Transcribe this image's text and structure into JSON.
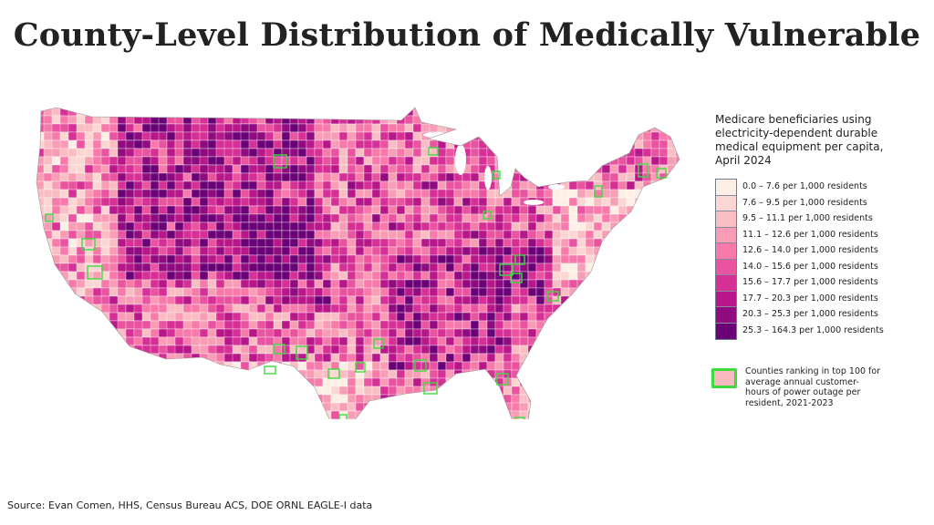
{
  "title": "County-Level Distribution of Medically Vulnerable",
  "legend": {
    "title": "Medicare beneficiaries using electricity-dependent durable medical equipment per capita, April 2024",
    "classes": [
      {
        "label": "0.0 – 7.6 per 1,000 residents",
        "color": "#fdeee6"
      },
      {
        "label": "7.6 – 9.5 per 1,000 residents",
        "color": "#fcd6d3"
      },
      {
        "label": "9.5 – 11.1 per 1,000 residents",
        "color": "#fbbdc4"
      },
      {
        "label": "11.1 – 12.6 per 1,000 residents",
        "color": "#f99db6"
      },
      {
        "label": "12.6 – 14.0 per 1,000 residents",
        "color": "#f77aab"
      },
      {
        "label": "14.0 – 15.6 per 1,000 residents",
        "color": "#e9539f"
      },
      {
        "label": "15.6 – 17.7 per 1,000 residents",
        "color": "#d62f95"
      },
      {
        "label": "17.7 – 20.3 per 1,000 residents",
        "color": "#b8178a"
      },
      {
        "label": "20.3 – 25.3 per 1,000 residents",
        "color": "#8f0b7f"
      },
      {
        "label": "25.3 – 164.3 per 1,000 residents",
        "color": "#6a0177"
      }
    ],
    "outage": {
      "label": "Counties ranking in top 100 for average annual customer-hours of power outage per resident, 2021-2023",
      "outline_color": "#3ddc3d"
    }
  },
  "source": "Source: Evan Comen, HHS, Census Bureau ACS, DOE ORNL EAGLE-I data"
}
